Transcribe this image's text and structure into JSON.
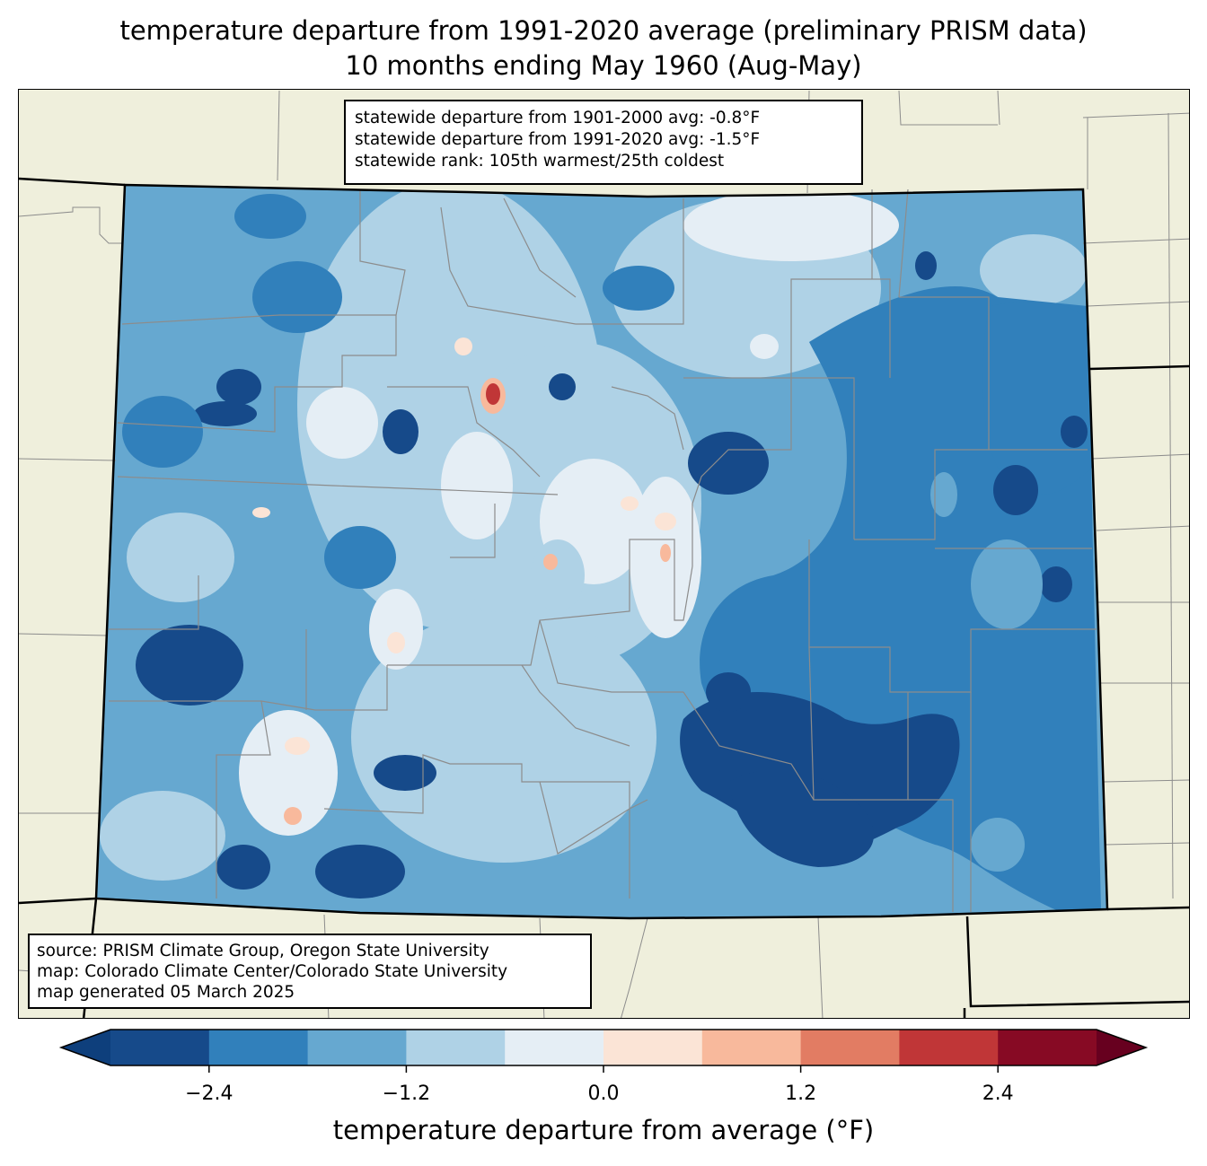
{
  "title": {
    "line1": "temperature departure from 1991-2020 average (preliminary PRISM data)",
    "line2": "10 months ending May 1960 (Aug-May)"
  },
  "stats_box": {
    "line1": "statewide departure from 1901-2000 avg: -0.8°F",
    "line2": "statewide departure from 1991-2020 avg: -1.5°F",
    "line3": "statewide rank: 105th warmest/25th coldest"
  },
  "source_box": {
    "line1": "source: PRISM Climate Group, Oregon State University",
    "line2": "map: Colorado Climate Center/Colorado State University",
    "line3": "map generated 05 March 2025"
  },
  "colorbar": {
    "label": "temperature departure from average (°F)",
    "ticks": [
      "−2.4",
      "−1.2",
      "0.0",
      "1.2",
      "2.4"
    ],
    "tick_values": [
      -2.4,
      -1.2,
      0.0,
      1.2,
      2.4
    ],
    "range": [
      -3.0,
      3.0
    ],
    "step": 0.6,
    "colors": [
      "#0e3f7c",
      "#164a8a",
      "#3180bb",
      "#66a8d0",
      "#afd2e6",
      "#e5eef5",
      "#fbe4d6",
      "#f8b99c",
      "#e27c63",
      "#c03637",
      "#870a24",
      "#67001f"
    ]
  },
  "colors": {
    "land": "#efefdc",
    "county_lines": "#8c8c8c",
    "state_lines": "#000000"
  }
}
